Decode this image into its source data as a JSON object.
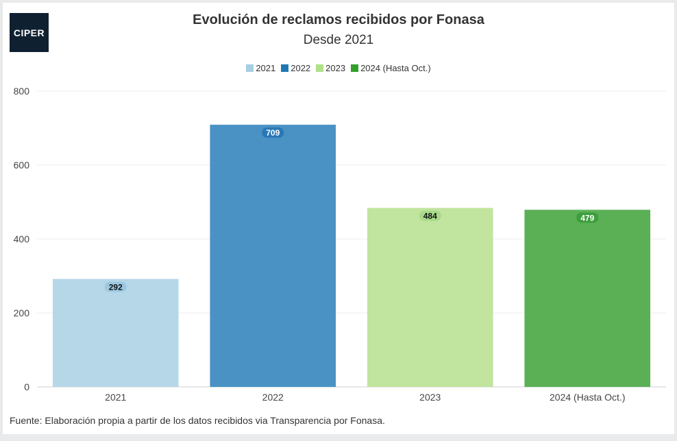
{
  "brand": {
    "logo_text": "CIPER",
    "logo_color": "#0f2030"
  },
  "chart_data": {
    "type": "bar",
    "title": "Evolución de reclamos recibidos por Fonasa",
    "subtitle": "Desde 2021",
    "categories": [
      "2021",
      "2022",
      "2023",
      "2024 (Hasta Oct.)"
    ],
    "values": [
      292,
      709,
      484,
      479
    ],
    "colors": [
      "#b6d7e8",
      "#4a92c4",
      "#c1e49e",
      "#5bb055"
    ],
    "label_colors": [
      "#9cc9e1",
      "#2a78b6",
      "#a9d98a",
      "#3c9e3c"
    ],
    "legend": [
      "2021",
      "2022",
      "2023",
      "2024 (Hasta Oct.)"
    ],
    "legend_colors": [
      "#a6cee3",
      "#1f78b4",
      "#b2df8a",
      "#33a02c"
    ],
    "legend_position": "top-center",
    "yticks": [
      0,
      200,
      400,
      600,
      800
    ],
    "ylim": [
      0,
      800
    ],
    "grid": true,
    "xlabel": "",
    "ylabel": ""
  },
  "source_note": "Fuente: Elaboración propia a partir de los datos recibidos via Transparencia por Fonasa."
}
